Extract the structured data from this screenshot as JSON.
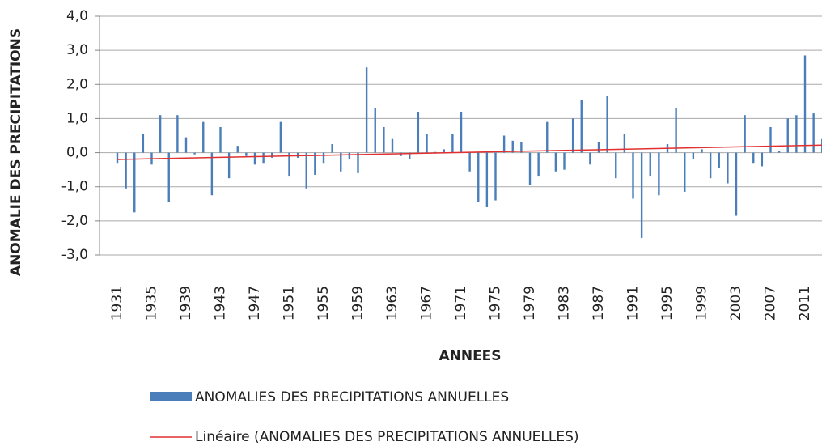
{
  "chart_data": {
    "type": "bar",
    "y_label": "ANOMALIE DES  PRECIPITATIONS",
    "x_label": "ANNEES",
    "categories": [
      "1931",
      null,
      null,
      null,
      "1935",
      null,
      null,
      null,
      "1939",
      null,
      null,
      null,
      "1943",
      null,
      null,
      null,
      "1947",
      null,
      null,
      null,
      "1951",
      null,
      null,
      null,
      "1955",
      null,
      null,
      null,
      "1959",
      null,
      null,
      null,
      "1963",
      null,
      null,
      null,
      "1967",
      null,
      null,
      null,
      "1971",
      null,
      null,
      null,
      "1975",
      null,
      null,
      null,
      "1979",
      null,
      null,
      null,
      "1983",
      null,
      null,
      null,
      "1987",
      null,
      null,
      null,
      "1991",
      null,
      null,
      null,
      "1995",
      null,
      null,
      null,
      "1999",
      null,
      null,
      null,
      "2003",
      null,
      null,
      null,
      "2007",
      null,
      null,
      null,
      "2011",
      null,
      null
    ],
    "series": [
      {
        "name": "ANOMALIES  DES PRECIPITATIONS ANNUELLES",
        "color": "#4a7ebb",
        "values": [
          -0.3,
          -1.05,
          -1.75,
          0.55,
          -0.35,
          1.1,
          -1.45,
          1.1,
          0.45,
          -0.05,
          0.9,
          -1.25,
          0.75,
          -0.75,
          0.2,
          -0.1,
          -0.35,
          -0.3,
          -0.15,
          0.9,
          -0.7,
          -0.15,
          -1.05,
          -0.65,
          -0.3,
          0.25,
          -0.55,
          -0.2,
          -0.6,
          2.5,
          1.3,
          0.75,
          0.4,
          -0.1,
          -0.2,
          1.2,
          0.55,
          0.02,
          0.1,
          0.55,
          1.2,
          -0.55,
          -1.45,
          -1.6,
          -1.4,
          0.5,
          0.35,
          0.3,
          -0.95,
          -0.7,
          0.9,
          -0.55,
          -0.5,
          1.0,
          1.55,
          -0.35,
          0.3,
          1.65,
          -0.75,
          0.55,
          -1.35,
          -2.5,
          -0.7,
          -1.25,
          0.25,
          1.3,
          -1.15,
          -0.2,
          0.1,
          -0.75,
          -0.45,
          -0.9,
          -1.85,
          1.1,
          -0.3,
          -0.4,
          0.75,
          0.05,
          1.0,
          1.1,
          2.85,
          1.15,
          0.4
        ]
      }
    ],
    "trend_line": {
      "name": "Linéaire (ANOMALIES  DES PRECIPITATIONS ANNUELLES)",
      "color": "#e03030",
      "values": [
        -0.2,
        0.22
      ]
    },
    "ylim": [
      -3,
      4
    ],
    "yticks": [
      {
        "value": 4,
        "label": "4,0"
      },
      {
        "value": 3,
        "label": "3,0"
      },
      {
        "value": 2,
        "label": "2,0"
      },
      {
        "value": 1,
        "label": "1,0"
      },
      {
        "value": 0,
        "label": "0,0"
      },
      {
        "value": -1,
        "label": "-1,0"
      },
      {
        "value": -2,
        "label": "-2,0"
      },
      {
        "value": -3,
        "label": "-3,0"
      }
    ],
    "grid": true
  }
}
